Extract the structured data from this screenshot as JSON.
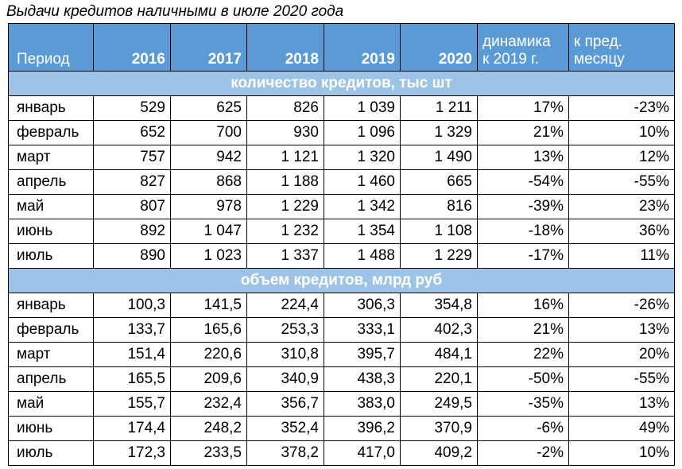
{
  "title": "Выдачи кредитов наличными в июле 2020 года",
  "header": {
    "period": "Период",
    "years": [
      "2016",
      "2017",
      "2018",
      "2019",
      "2020"
    ],
    "dyn_line1": "динамика",
    "dyn_line2": "к 2019 г.",
    "prev_line1": "к пред.",
    "prev_line2": "месяцу"
  },
  "sections": [
    {
      "title": "количество кредитов, тыс шт",
      "rows": [
        {
          "label": "январь",
          "values": [
            "529",
            "625",
            "826",
            "1 039",
            "1 211"
          ],
          "dyn": "17%",
          "prev": "-23%"
        },
        {
          "label": "февраль",
          "values": [
            "652",
            "700",
            "930",
            "1 096",
            "1 329"
          ],
          "dyn": "21%",
          "prev": "10%"
        },
        {
          "label": "март",
          "values": [
            "757",
            "942",
            "1 121",
            "1 320",
            "1 490"
          ],
          "dyn": "13%",
          "prev": "12%"
        },
        {
          "label": "апрель",
          "values": [
            "827",
            "868",
            "1 188",
            "1 460",
            "665"
          ],
          "dyn": "-54%",
          "prev": "-55%"
        },
        {
          "label": "май",
          "values": [
            "807",
            "978",
            "1 229",
            "1 342",
            "816"
          ],
          "dyn": "-39%",
          "prev": "23%"
        },
        {
          "label": "июнь",
          "values": [
            "892",
            "1 047",
            "1 232",
            "1 354",
            "1 108"
          ],
          "dyn": "-18%",
          "prev": "36%"
        },
        {
          "label": "июль",
          "values": [
            "890",
            "1 023",
            "1 337",
            "1 488",
            "1 229"
          ],
          "dyn": "-17%",
          "prev": "11%"
        }
      ]
    },
    {
      "title": "объем кредитов, млрд руб",
      "rows": [
        {
          "label": "январь",
          "values": [
            "100,3",
            "141,5",
            "224,4",
            "306,3",
            "354,8"
          ],
          "dyn": "16%",
          "prev": "-26%"
        },
        {
          "label": "февраль",
          "values": [
            "133,7",
            "165,6",
            "253,3",
            "333,1",
            "402,3"
          ],
          "dyn": "21%",
          "prev": "13%"
        },
        {
          "label": "март",
          "values": [
            "151,4",
            "220,6",
            "310,8",
            "395,7",
            "484,1"
          ],
          "dyn": "22%",
          "prev": "20%"
        },
        {
          "label": "апрель",
          "values": [
            "165,5",
            "209,6",
            "340,9",
            "438,3",
            "220,1"
          ],
          "dyn": "-50%",
          "prev": "-55%"
        },
        {
          "label": "май",
          "values": [
            "155,7",
            "232,4",
            "356,7",
            "383,0",
            "249,5"
          ],
          "dyn": "-35%",
          "prev": "13%"
        },
        {
          "label": "июнь",
          "values": [
            "174,4",
            "248,2",
            "352,4",
            "396,2",
            "370,9"
          ],
          "dyn": "-6%",
          "prev": "49%"
        },
        {
          "label": "июль",
          "values": [
            "172,3",
            "233,5",
            "378,2",
            "417,0",
            "409,2"
          ],
          "dyn": "-2%",
          "prev": "10%"
        }
      ]
    }
  ],
  "colors": {
    "header_bg": "#5b9bd5",
    "section_bg": "#9dc3e6",
    "header_text": "#ffffff"
  }
}
